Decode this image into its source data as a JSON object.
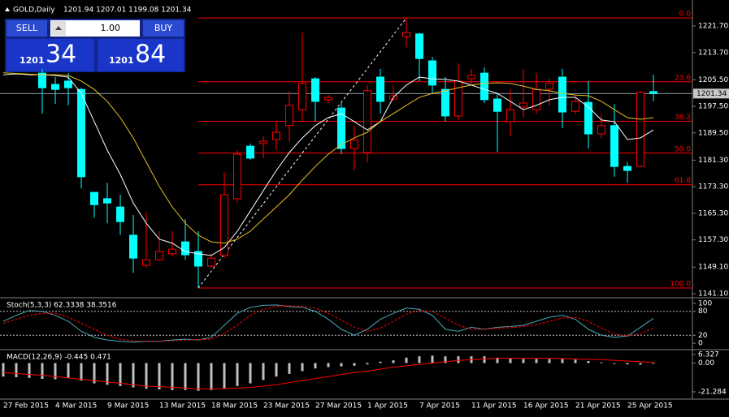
{
  "header": {
    "symbol": "GOLD,Daily",
    "ohlc": "1201.94 1207.01 1199.08 1201.34"
  },
  "trade_panel": {
    "sell": "SELL",
    "lot": "1.00",
    "buy": "BUY",
    "bid_big": "1201",
    "bid_small": "34",
    "ask_big": "1201",
    "ask_small": "84"
  },
  "chart_data": [
    {
      "type": "candlestick",
      "categories": [
        "27 Feb 2015",
        null,
        null,
        null,
        "4 Mar 2015",
        null,
        null,
        null,
        "9 Mar 2015",
        null,
        null,
        null,
        "13 Mar 2015",
        null,
        null,
        null,
        "18 Mar 2015",
        null,
        null,
        null,
        "23 Mar 2015",
        null,
        null,
        null,
        "27 Mar 2015",
        null,
        null,
        null,
        "1 Apr 2015",
        null,
        null,
        null,
        "7 Apr 2015",
        null,
        null,
        null,
        "11 Apr 2015",
        null,
        null,
        null,
        "16 Apr 2015",
        null,
        null,
        null,
        "21 Apr 2015",
        null,
        null,
        null,
        "25 Apr 2015",
        null,
        null
      ],
      "open": [
        null,
        null,
        null,
        1207.5,
        1204.1,
        1205.1,
        1202.6,
        1171.6,
        1169.7,
        1167.2,
        1158.7,
        1149.6,
        1151.3,
        1153.1,
        1156.7,
        1153.8,
        1149.4,
        1152.6,
        1169.7,
        1185.5,
        1186.3,
        1187.5,
        1191.7,
        1196.5,
        1205.8,
        1199.5,
        1197.0,
        1184.8,
        1183.6,
        1206.3,
        1199.7,
        1218.5,
        1219.3,
        1211.2,
        1202.6,
        1194.6,
        1205.8,
        1207.5,
        1199.7,
        1192.9,
        1197.3,
        1196.5,
        1202.6,
        1206.3,
        1196.0,
        1198.7,
        1189.2,
        1191.7,
        1179.4,
        1179.4,
        1201.94
      ],
      "high": [
        null,
        null,
        null,
        1208.8,
        1206.3,
        1207.5,
        1203.1,
        1171.6,
        1174.5,
        1170.9,
        1164.8,
        1165.5,
        1159.9,
        1159.9,
        1163.6,
        1159.9,
        1153.3,
        1177.7,
        1184.3,
        1186.3,
        1188.5,
        1192.9,
        1202.2,
        1219.7,
        1206.3,
        1200.9,
        1199.0,
        1191.7,
        1203.9,
        1208.8,
        1203.9,
        1224.1,
        1219.7,
        1212.4,
        1206.3,
        1210.5,
        1208.8,
        1209.2,
        1201.4,
        1202.6,
        1208.8,
        1207.5,
        1205.8,
        1208.8,
        1200.7,
        1205.1,
        1195.3,
        1198.2,
        1180.7,
        1202.2,
        1207.01
      ],
      "low": [
        null,
        null,
        null,
        1195.3,
        1198.2,
        1197.8,
        1172.8,
        1164.0,
        1162.3,
        1158.7,
        1147.4,
        1148.9,
        1150.9,
        1152.3,
        1151.3,
        1143.0,
        1148.9,
        1151.8,
        1168.4,
        1181.4,
        1181.9,
        1184.3,
        1186.8,
        1192.9,
        1192.9,
        1198.5,
        1183.1,
        1178.2,
        1180.7,
        1195.3,
        1199.0,
        1215.3,
        1205.1,
        1201.4,
        1192.9,
        1193.4,
        1203.9,
        1198.5,
        1183.8,
        1188.5,
        1194.1,
        1195.3,
        1197.8,
        1190.9,
        1195.3,
        1184.8,
        1188.0,
        1176.3,
        1174.5,
        1179.2,
        1199.08
      ],
      "close": [
        null,
        null,
        null,
        1203.1,
        1202.6,
        1203.1,
        1176.3,
        1167.9,
        1168.4,
        1162.8,
        1151.8,
        1151.3,
        1153.8,
        1154.5,
        1152.8,
        1149.4,
        1151.8,
        1170.9,
        1183.1,
        1181.9,
        1187.0,
        1189.7,
        1197.8,
        1204.4,
        1199.0,
        1200.2,
        1184.8,
        1187.3,
        1202.2,
        1199.0,
        1200.7,
        1219.7,
        1211.9,
        1203.9,
        1194.6,
        1205.1,
        1206.8,
        1199.5,
        1196.0,
        1196.5,
        1198.5,
        1202.6,
        1204.4,
        1195.8,
        1199.0,
        1189.2,
        1191.7,
        1179.4,
        1178.2,
        1201.7,
        1201.34
      ],
      "ma_fast": [
        1207.0,
        1207.3,
        1207.0,
        1207.0,
        1206.8,
        1206.3,
        1201.4,
        1192.9,
        1184.3,
        1177.0,
        1168.4,
        1162.3,
        1157.5,
        1156.3,
        1153.8,
        1153.1,
        1152.6,
        1155.0,
        1159.9,
        1166.0,
        1172.1,
        1178.2,
        1183.6,
        1188.0,
        1191.7,
        1194.1,
        1195.3,
        1192.9,
        1190.4,
        1192.9,
        1200.2,
        1203.9,
        1206.3,
        1205.8,
        1205.6,
        1205.1,
        1203.9,
        1202.6,
        1201.4,
        1199.0,
        1196.5,
        1197.8,
        1199.5,
        1200.2,
        1200.2,
        1197.3,
        1193.4,
        1192.9,
        1187.5,
        1188.0,
        1190.4
      ],
      "ma_slow": [
        1207.6,
        1207.4,
        1207.2,
        1207.0,
        1207.0,
        1206.8,
        1205.1,
        1202.6,
        1199.0,
        1194.1,
        1188.0,
        1180.7,
        1173.4,
        1167.2,
        1162.3,
        1158.7,
        1156.7,
        1156.3,
        1157.5,
        1159.9,
        1163.6,
        1167.2,
        1170.9,
        1175.3,
        1179.4,
        1183.1,
        1186.0,
        1188.0,
        1189.7,
        1192.9,
        1195.3,
        1197.8,
        1200.2,
        1201.4,
        1202.2,
        1203.1,
        1203.9,
        1204.4,
        1204.6,
        1204.4,
        1203.6,
        1202.6,
        1202.2,
        1201.4,
        1200.9,
        1200.7,
        1199.0,
        1196.5,
        1194.1,
        1193.6,
        1194.1
      ],
      "up_color": "#ff0000",
      "down_color": "#00ffff",
      "ma_fast_color": "#ffffff",
      "ma_slow_color": "#e8c020",
      "fib_color": "#ff0000",
      "fib_levels": [
        {
          "label": "0.0",
          "price": 1224.1
        },
        {
          "label": "23.6",
          "price": 1204.9
        },
        {
          "label": "38.2",
          "price": 1193.0
        },
        {
          "label": "50.0",
          "price": 1183.4
        },
        {
          "label": "61.8",
          "price": 1173.9
        },
        {
          "label": "100.0",
          "price": 1142.8
        }
      ],
      "bid": 1201.34,
      "ylim": [
        1140.12,
        1228.54
      ],
      "yticks": [
        {
          "value": 1221.7,
          "label": "1221.70"
        },
        {
          "value": 1213.7,
          "label": "1213.70"
        },
        {
          "value": 1205.5,
          "label": "1205.50"
        },
        {
          "value": 1197.5,
          "label": "1197.50"
        },
        {
          "value": 1189.5,
          "label": "1189.50"
        },
        {
          "value": 1181.3,
          "label": "1181.30"
        },
        {
          "value": 1173.3,
          "label": "1173.30"
        },
        {
          "value": 1165.3,
          "label": "1165.30"
        },
        {
          "value": 1157.3,
          "label": "1157.30"
        },
        {
          "value": 1149.1,
          "label": "1149.10"
        },
        {
          "value": 1141.1,
          "label": "1141.10"
        }
      ]
    },
    {
      "type": "line",
      "title": "Stoch(5,3,3) 62.3338 38.3516",
      "main": [
        55,
        70,
        82,
        80,
        70,
        55,
        30,
        15,
        8,
        5,
        3,
        5,
        5,
        8,
        10,
        8,
        15,
        45,
        75,
        90,
        95,
        96,
        92,
        90,
        80,
        60,
        35,
        20,
        35,
        60,
        75,
        88,
        85,
        70,
        35,
        30,
        40,
        35,
        40,
        42,
        45,
        55,
        65,
        70,
        60,
        35,
        20,
        15,
        18,
        40,
        62.3338
      ],
      "signal": [
        50,
        60,
        70,
        75,
        75,
        65,
        50,
        35,
        20,
        10,
        6,
        5,
        5,
        6,
        8,
        9,
        10,
        25,
        45,
        70,
        85,
        93,
        94,
        92,
        88,
        75,
        58,
        40,
        30,
        38,
        55,
        73,
        82,
        80,
        63,
        45,
        35,
        35,
        38,
        39,
        42,
        47,
        55,
        63,
        65,
        55,
        38,
        23,
        18,
        24,
        38.3516
      ],
      "main_color": "#4aa8b8",
      "signal_color": "#ff0000",
      "ylim": [
        -14,
        114
      ],
      "yticks": [
        100,
        80,
        20,
        0
      ],
      "dashed_levels": [
        80,
        20
      ]
    },
    {
      "type": "bar",
      "title": "MACD(12,26,9) -0.445 0.471",
      "histogram": [
        -10,
        -10.5,
        -11,
        -11.7,
        -12,
        -11,
        -13,
        -15,
        -16,
        -17,
        -18,
        -19,
        -19.5,
        -20,
        -20,
        -20.5,
        -20,
        -19,
        -17,
        -15,
        -12.5,
        -10,
        -8,
        -6,
        -4,
        -3,
        -2.5,
        -2,
        -1,
        1,
        2,
        4,
        5,
        5.5,
        5,
        5,
        5,
        5,
        4,
        3.5,
        3,
        3,
        3,
        3,
        2.5,
        1.5,
        0.5,
        -0.5,
        -1,
        -1.2,
        -0.445
      ],
      "signal": [
        -7,
        -7.8,
        -8.5,
        -9,
        -10,
        -11,
        -12,
        -13,
        -14,
        -15,
        -16,
        -17,
        -17.5,
        -18,
        -18.5,
        -19,
        -19,
        -19,
        -18.5,
        -18,
        -17,
        -16,
        -14.5,
        -13,
        -11.5,
        -10,
        -8.5,
        -7,
        -6,
        -4.5,
        -3,
        -2,
        -1,
        0,
        1,
        2,
        2.5,
        3,
        3.5,
        3.5,
        3.5,
        3.5,
        3.5,
        3.3,
        3,
        2.8,
        2.5,
        2,
        1.5,
        1,
        0.471
      ],
      "histogram_color": "#c0c0c0",
      "signal_color": "#ff0000",
      "ylim": [
        -26.1,
        9.3
      ],
      "yticks": [
        {
          "value": 6.327,
          "label": "6.327"
        },
        {
          "value": 0,
          "label": "0.00"
        },
        {
          "value": -21.284,
          "label": "-21.284"
        }
      ]
    }
  ]
}
